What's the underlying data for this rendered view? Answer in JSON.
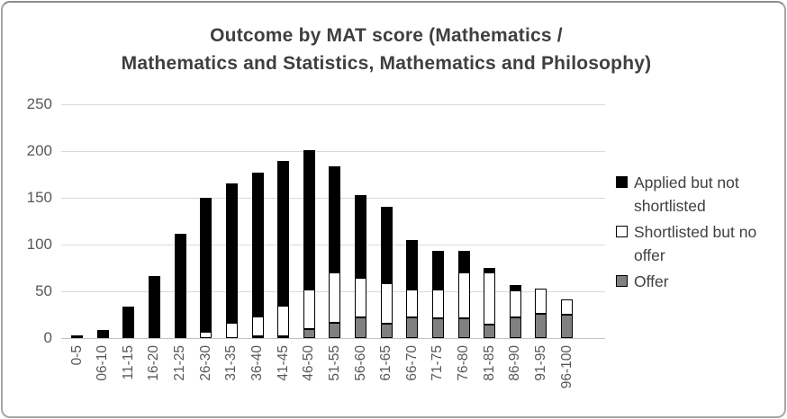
{
  "title_lines": [
    "Outcome by MAT score (Mathematics /",
    "Mathematics and Statistics, Mathematics and Philosophy)"
  ],
  "chart_data": {
    "type": "bar",
    "stacked": true,
    "title": "Outcome by MAT score (Mathematics / Mathematics and Statistics, Mathematics and Philosophy)",
    "categories": [
      "0-5",
      "06-10",
      "11-15",
      "16-20",
      "21-25",
      "26-30",
      "31-35",
      "36-40",
      "41-45",
      "46-50",
      "51-55",
      "56-60",
      "61-65",
      "66-70",
      "71-75",
      "76-80",
      "81-85",
      "86-90",
      "91-95",
      "96-100"
    ],
    "series": [
      {
        "name": "Applied but not shortlisted",
        "color": "#000000",
        "values": [
          3,
          9,
          34,
          64,
          109,
          143,
          149,
          154,
          154,
          149,
          113,
          89,
          81,
          53,
          41,
          23,
          5,
          6,
          0,
          0
        ]
      },
      {
        "name": "Shortlisted but no offer",
        "color": "#ffffff",
        "values": [
          0,
          0,
          0,
          2,
          2,
          7,
          16,
          21,
          33,
          42,
          54,
          42,
          44,
          30,
          31,
          49,
          56,
          29,
          27,
          16
        ]
      },
      {
        "name": "Offer",
        "color": "#808080",
        "values": [
          0,
          0,
          0,
          0,
          0,
          0,
          0,
          1,
          2,
          10,
          16,
          22,
          15,
          22,
          21,
          21,
          14,
          22,
          26,
          25
        ]
      }
    ],
    "totals": [
      3,
      9,
      34,
      66,
      111,
      150,
      165,
      176,
      189,
      201,
      183,
      153,
      140,
      105,
      93,
      93,
      75,
      57,
      53,
      41
    ],
    "xlabel": "",
    "ylabel": "",
    "ylim": [
      0,
      250
    ],
    "yticks": [
      0,
      50,
      100,
      150,
      200,
      250
    ],
    "grid": true,
    "legend_position": "right"
  },
  "colors": {
    "title_text": "#3f3f3f",
    "axis_text": "#595959",
    "gridline": "#d9d9d9",
    "segment_border": "#000000"
  }
}
